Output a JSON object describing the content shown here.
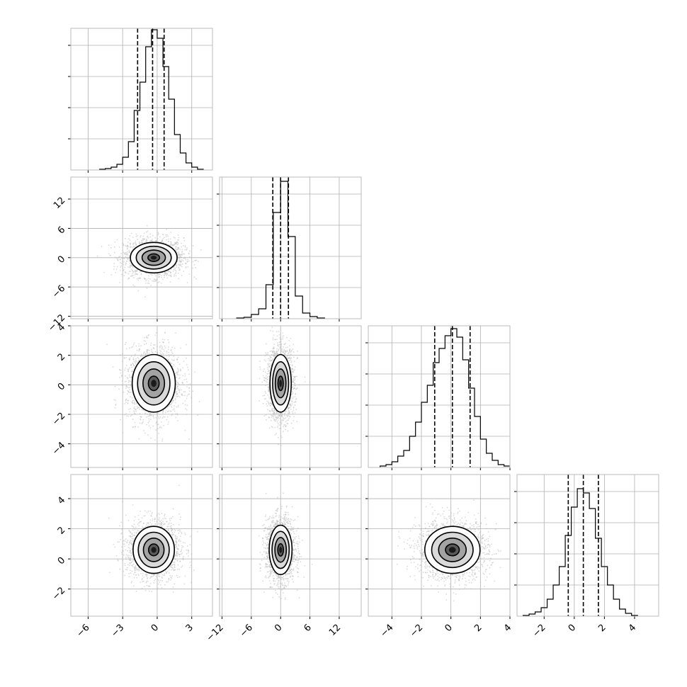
{
  "chart_data": {
    "type": "corner",
    "description_dims": 4,
    "axes": [
      {
        "range": [
          -7.5,
          4.8
        ],
        "ticks": [
          -6,
          -3,
          0,
          3
        ],
        "tick_labels": [
          "−6",
          "−3",
          "0",
          "3"
        ]
      },
      {
        "range": [
          -12.5,
          16.5
        ],
        "ticks": [
          -12,
          -6,
          0,
          6,
          12
        ],
        "tick_labels": [
          "−12",
          "−6",
          "0",
          "6",
          "12"
        ]
      },
      {
        "range": [
          -5.6,
          4.0
        ],
        "ticks": [
          -4,
          -2,
          0,
          2,
          4
        ],
        "tick_labels": [
          "−4",
          "−2",
          "0",
          "2",
          "4"
        ]
      },
      {
        "range": [
          -3.8,
          5.6
        ],
        "ticks": [
          -2,
          0,
          2,
          4
        ],
        "tick_labels": [
          "−2",
          "0",
          "2",
          "4"
        ]
      }
    ],
    "histograms": [
      {
        "param": 0,
        "ymax": 1.0,
        "quantiles": [
          -1.7,
          -0.4,
          0.6
        ],
        "bins": [
          [
            -5.0,
            -4.5,
            0.005
          ],
          [
            -4.5,
            -4.0,
            0.01
          ],
          [
            -4.0,
            -3.5,
            0.02
          ],
          [
            -3.5,
            -3.0,
            0.04
          ],
          [
            -3.0,
            -2.5,
            0.09
          ],
          [
            -2.5,
            -2.0,
            0.2
          ],
          [
            -2.0,
            -1.5,
            0.42
          ],
          [
            -1.5,
            -1.0,
            0.62
          ],
          [
            -1.0,
            -0.5,
            0.87
          ],
          [
            -0.5,
            0.0,
            0.99
          ],
          [
            0.0,
            0.5,
            0.93
          ],
          [
            0.5,
            1.0,
            0.73
          ],
          [
            1.0,
            1.5,
            0.5
          ],
          [
            1.5,
            2.0,
            0.25
          ],
          [
            2.0,
            2.5,
            0.12
          ],
          [
            2.5,
            3.0,
            0.05
          ],
          [
            3.0,
            3.5,
            0.02
          ],
          [
            3.5,
            4.0,
            0.005
          ]
        ]
      },
      {
        "param": 1,
        "ymax": 1.0,
        "quantiles": [
          -1.6,
          0.0,
          1.6
        ],
        "bins": [
          [
            -9.0,
            -7.5,
            0.005
          ],
          [
            -7.5,
            -6.0,
            0.01
          ],
          [
            -6.0,
            -4.5,
            0.03
          ],
          [
            -4.5,
            -3.0,
            0.07
          ],
          [
            -3.0,
            -1.5,
            0.24
          ],
          [
            -1.5,
            0.0,
            0.75
          ],
          [
            0.0,
            1.5,
            0.97
          ],
          [
            1.5,
            3.0,
            0.58
          ],
          [
            3.0,
            4.5,
            0.16
          ],
          [
            4.5,
            6.0,
            0.04
          ],
          [
            6.0,
            7.5,
            0.015
          ],
          [
            7.5,
            9.0,
            0.005
          ]
        ]
      },
      {
        "param": 2,
        "ymax": 1.0,
        "quantiles": [
          -1.1,
          0.1,
          1.3
        ],
        "bins": [
          [
            -4.8,
            -4.4,
            0.01
          ],
          [
            -4.4,
            -4.0,
            0.02
          ],
          [
            -4.0,
            -3.6,
            0.04
          ],
          [
            -3.6,
            -3.2,
            0.08
          ],
          [
            -3.2,
            -2.8,
            0.12
          ],
          [
            -2.8,
            -2.4,
            0.22
          ],
          [
            -2.4,
            -2.0,
            0.32
          ],
          [
            -2.0,
            -1.6,
            0.46
          ],
          [
            -1.6,
            -1.2,
            0.58
          ],
          [
            -1.2,
            -0.8,
            0.74
          ],
          [
            -0.8,
            -0.4,
            0.84
          ],
          [
            -0.4,
            0.0,
            0.93
          ],
          [
            0.0,
            0.4,
            0.98
          ],
          [
            0.4,
            0.8,
            0.92
          ],
          [
            0.8,
            1.2,
            0.76
          ],
          [
            1.2,
            1.6,
            0.56
          ],
          [
            1.6,
            2.0,
            0.36
          ],
          [
            2.0,
            2.4,
            0.2
          ],
          [
            2.4,
            2.8,
            0.1
          ],
          [
            2.8,
            3.2,
            0.05
          ],
          [
            3.2,
            3.6,
            0.02
          ],
          [
            3.6,
            4.0,
            0.01
          ]
        ]
      },
      {
        "param": 3,
        "ymax": 1.0,
        "quantiles": [
          -0.4,
          0.6,
          1.6
        ],
        "bins": [
          [
            -3.4,
            -3.0,
            0.005
          ],
          [
            -3.0,
            -2.6,
            0.015
          ],
          [
            -2.6,
            -2.2,
            0.03
          ],
          [
            -2.2,
            -1.8,
            0.06
          ],
          [
            -1.8,
            -1.4,
            0.12
          ],
          [
            -1.4,
            -1.0,
            0.22
          ],
          [
            -1.0,
            -0.6,
            0.35
          ],
          [
            -0.6,
            -0.2,
            0.57
          ],
          [
            -0.2,
            0.2,
            0.77
          ],
          [
            0.2,
            0.6,
            0.9
          ],
          [
            0.6,
            1.0,
            0.87
          ],
          [
            1.0,
            1.4,
            0.76
          ],
          [
            1.4,
            1.8,
            0.55
          ],
          [
            1.8,
            2.2,
            0.35
          ],
          [
            2.2,
            2.6,
            0.22
          ],
          [
            2.6,
            3.0,
            0.12
          ],
          [
            3.0,
            3.4,
            0.05
          ],
          [
            3.4,
            3.8,
            0.02
          ],
          [
            3.8,
            4.2,
            0.005
          ]
        ]
      }
    ],
    "pairs": [
      {
        "x": 0,
        "y": 1,
        "mean": [
          -0.3,
          0.0
        ],
        "sd": [
          1.3,
          2.0
        ],
        "contours": [
          [
            0.5,
            0.12
          ],
          [
            1.0,
            0.45
          ],
          [
            1.5,
            0.9
          ],
          [
            2.0,
            1.35
          ]
        ]
      },
      {
        "x": 0,
        "y": 2,
        "mean": [
          -0.3,
          0.1
        ],
        "sd": [
          1.2,
          1.25
        ],
        "contours": [
          [
            0.5,
            0.15
          ],
          [
            1.0,
            0.7
          ],
          [
            1.5,
            1.3
          ],
          [
            2.0,
            1.95
          ]
        ]
      },
      {
        "x": 1,
        "y": 2,
        "mean": [
          0.0,
          0.1
        ],
        "sd": [
          1.4,
          1.25
        ],
        "contours": [
          [
            0.5,
            0.3
          ],
          [
            1.0,
            1.05
          ],
          [
            1.5,
            1.65
          ],
          [
            2.0,
            2.35
          ]
        ]
      },
      {
        "x": 0,
        "y": 3,
        "mean": [
          -0.3,
          0.6
        ],
        "sd": [
          1.15,
          1.0
        ],
        "contours": [
          [
            0.5,
            0.15
          ],
          [
            1.0,
            0.55
          ],
          [
            1.5,
            1.05
          ],
          [
            2.0,
            1.5
          ]
        ]
      },
      {
        "x": 1,
        "y": 3,
        "mean": [
          0.0,
          0.6
        ],
        "sd": [
          1.5,
          1.05
        ],
        "contours": [
          [
            0.5,
            0.2
          ],
          [
            1.0,
            1.05
          ],
          [
            1.5,
            1.65
          ],
          [
            2.0,
            2.1
          ]
        ]
      },
      {
        "x": 2,
        "y": 3,
        "mean": [
          0.1,
          0.6
        ],
        "sd": [
          1.2,
          1.0
        ],
        "contours": [
          [
            0.5,
            0.2
          ],
          [
            1.0,
            0.6
          ],
          [
            1.5,
            1.05
          ],
          [
            2.0,
            1.5
          ]
        ]
      }
    ],
    "grid": true,
    "quantile_lines": "dashed",
    "colors": {
      "line": "#000000",
      "grid": "#b0b0b0",
      "points": "#bbbbbb",
      "frame": "#bbbbbb"
    }
  }
}
